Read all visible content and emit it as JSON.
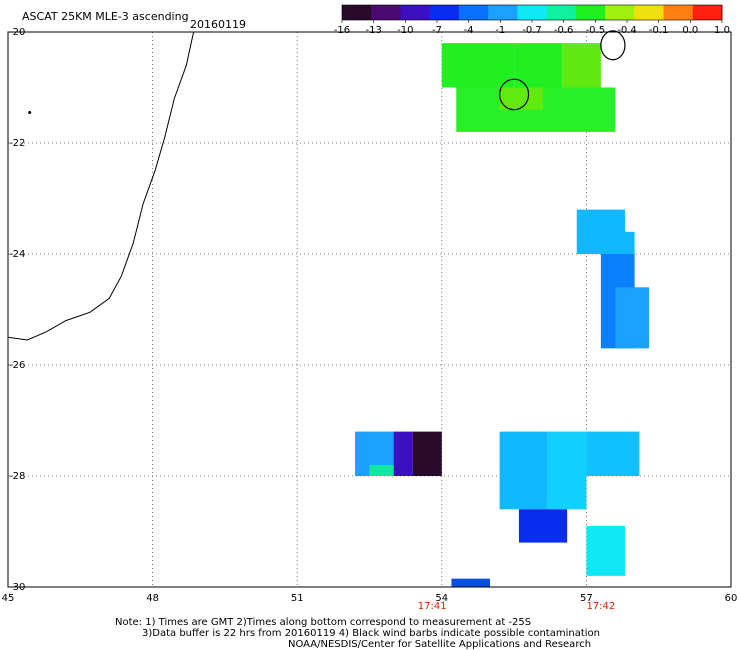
{
  "header": {
    "title": "ASCAT 25KM MLE-3 ascending",
    "date": "20160119"
  },
  "colorbar": {
    "tick_labels": [
      "-16",
      "-13",
      "-10",
      "-7",
      "-4",
      "-1",
      "-0.7",
      "-0.6",
      "-0.5",
      "-0.4",
      "-0.1",
      "0.0",
      "1.0"
    ],
    "colors": [
      "#2a0a2a",
      "#4a0870",
      "#3a10c0",
      "#0a2cf0",
      "#0a70ff",
      "#1aa0ff",
      "#10e8f8",
      "#10f0a0",
      "#20f020",
      "#a0f010",
      "#f0e010",
      "#ff8010",
      "#ff2010"
    ]
  },
  "chart_data": {
    "type": "heatmap",
    "title": "ASCAT 25KM MLE-3 ascending",
    "xlim": [
      45,
      60
    ],
    "ylim": [
      -30,
      -20
    ],
    "x_ticks": [
      "45",
      "48",
      "51",
      "54",
      "57",
      "60"
    ],
    "y_ticks": [
      "-20",
      "-22",
      "-24",
      "-26",
      "-28",
      "-30"
    ],
    "pass_times": [
      {
        "lon": 53.8,
        "label": "17:41"
      },
      {
        "lon": 57.3,
        "label": "17:42"
      }
    ],
    "swaths": [
      {
        "lon": [
          54.0,
          55.5
        ],
        "lat": [
          -21.0,
          -20.2
        ],
        "color": "#20f020"
      },
      {
        "lon": [
          55.5,
          56.5
        ],
        "lat": [
          -21.0,
          -20.2
        ],
        "color": "#20f020"
      },
      {
        "lon": [
          56.5,
          57.3
        ],
        "lat": [
          -21.0,
          -20.2
        ],
        "color": "#60e810"
      },
      {
        "lon": [
          54.3,
          57.6
        ],
        "lat": [
          -21.8,
          -21.0
        ],
        "color": "#28f028"
      },
      {
        "lon": [
          55.2,
          56.1
        ],
        "lat": [
          -21.4,
          -21.0
        ],
        "color": "#60ea10"
      },
      {
        "lon": [
          56.8,
          57.8
        ],
        "lat": [
          -24.0,
          -23.2
        ],
        "color": "#10b8ff"
      },
      {
        "lon": [
          57.3,
          58.0
        ],
        "lat": [
          -24.0,
          -23.6
        ],
        "color": "#10b8ff"
      },
      {
        "lon": [
          57.3,
          58.0
        ],
        "lat": [
          -25.7,
          -24.0
        ],
        "color": "#0a80ff"
      },
      {
        "lon": [
          57.6,
          58.3
        ],
        "lat": [
          -25.7,
          -24.6
        ],
        "color": "#1aa0ff"
      },
      {
        "lon": [
          52.2,
          53.0
        ],
        "lat": [
          -28.0,
          -27.2
        ],
        "color": "#1aa0ff"
      },
      {
        "lon": [
          53.0,
          53.4
        ],
        "lat": [
          -28.0,
          -27.2
        ],
        "color": "#3a10c0"
      },
      {
        "lon": [
          53.4,
          54.0
        ],
        "lat": [
          -28.0,
          -27.2
        ],
        "color": "#2a0a2a"
      },
      {
        "lon": [
          52.5,
          53.0
        ],
        "lat": [
          -28.0,
          -27.8
        ],
        "color": "#10e8a0"
      },
      {
        "lon": [
          55.2,
          56.2
        ],
        "lat": [
          -28.6,
          -27.2
        ],
        "color": "#10b8ff"
      },
      {
        "lon": [
          56.2,
          57.0
        ],
        "lat": [
          -28.6,
          -27.2
        ],
        "color": "#10d0ff"
      },
      {
        "lon": [
          55.6,
          56.6
        ],
        "lat": [
          -29.2,
          -28.6
        ],
        "color": "#0a2cf0"
      },
      {
        "lon": [
          57.0,
          58.1
        ],
        "lat": [
          -28.0,
          -27.2
        ],
        "color": "#10c0ff"
      },
      {
        "lon": [
          57.0,
          57.8
        ],
        "lat": [
          -29.8,
          -28.9
        ],
        "color": "#10e8f8"
      },
      {
        "lon": [
          54.2,
          55.0
        ],
        "lat": [
          -30.0,
          -29.85
        ],
        "color": "#0a50e0"
      }
    ],
    "islands": [
      {
        "name": "",
        "lon": [
          55.2,
          55.8
        ],
        "lat": [
          -21.4,
          -20.85
        ]
      },
      {
        "name": "",
        "lon": [
          57.3,
          57.8
        ],
        "lat": [
          -20.5,
          -19.98
        ]
      }
    ],
    "coastline": [
      [
        48.85,
        -20.0
      ],
      [
        48.7,
        -20.6
      ],
      [
        48.45,
        -21.2
      ],
      [
        48.25,
        -21.9
      ],
      [
        48.05,
        -22.5
      ],
      [
        47.8,
        -23.1
      ],
      [
        47.6,
        -23.8
      ],
      [
        47.35,
        -24.4
      ],
      [
        47.1,
        -24.8
      ],
      [
        46.7,
        -25.05
      ],
      [
        46.2,
        -25.2
      ],
      [
        45.8,
        -25.4
      ],
      [
        45.4,
        -25.55
      ],
      [
        45.0,
        -25.5
      ]
    ]
  },
  "footer": {
    "line1": "Note: 1) Times are GMT 2)Times along bottom correspond to measurement at -25S",
    "line2": "3)Data buffer is 22 hrs from 20160119 4) Black wind barbs indicate possible contamination",
    "line3": "NOAA/NESDIS/Center for Satellite Applications and Research"
  }
}
